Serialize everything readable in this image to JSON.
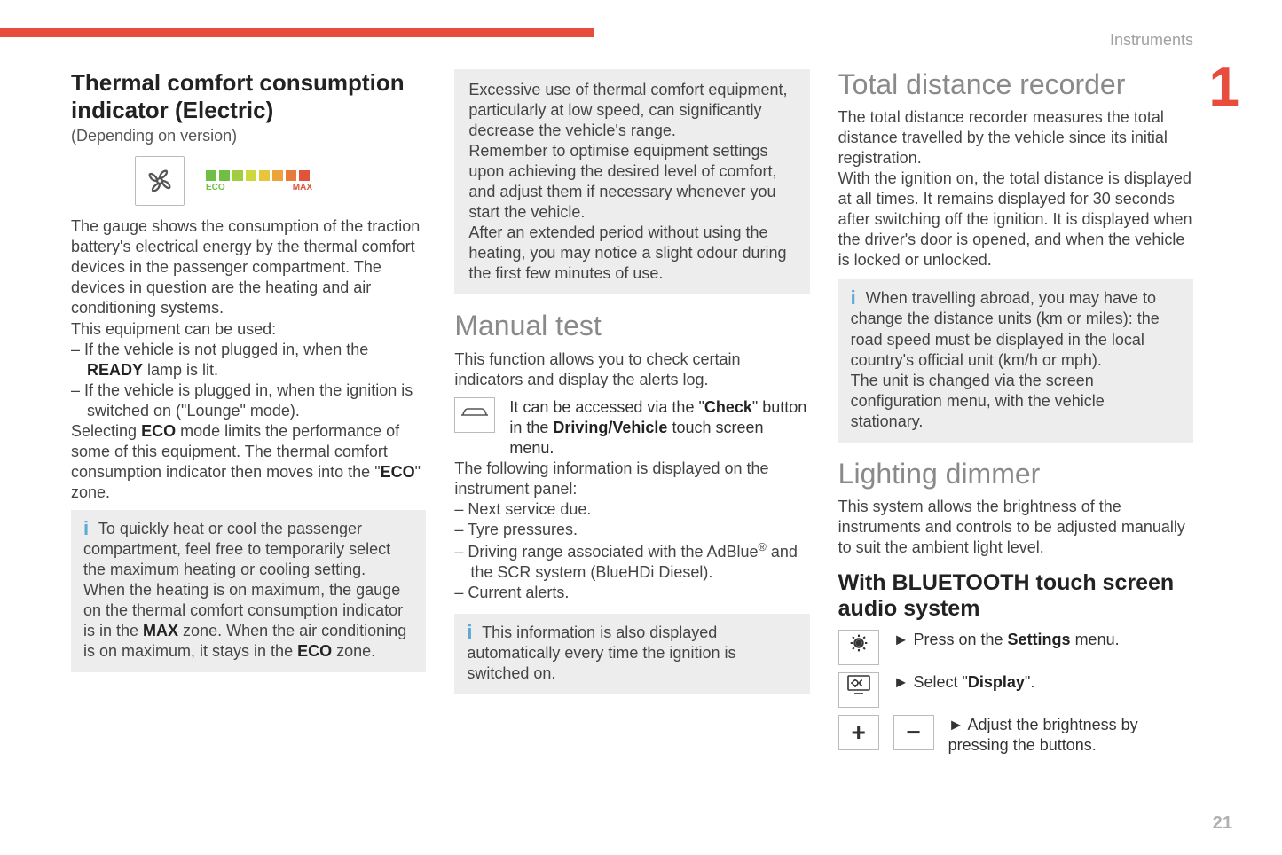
{
  "header": {
    "section": "Instruments",
    "chapter_number": "1",
    "page_number": "21"
  },
  "accent_color": "#e74c3c",
  "col1": {
    "h_title": "Thermal comfort consumption indicator (Electric)",
    "sub": "(Depending on version)",
    "gauge": {
      "colors": [
        "#6fbf44",
        "#6fbf44",
        "#9fcf3f",
        "#cfd83a",
        "#e8c63a",
        "#eda23a",
        "#e87a3a",
        "#e2543a"
      ],
      "eco_label": "ECO",
      "eco_color": "#6fbf44",
      "max_label": "MAX",
      "max_color": "#e2543a"
    },
    "p1": "The gauge shows the consumption of the traction battery's electrical energy by the thermal comfort devices in the passenger compartment. The devices in question are the heating and air conditioning systems.",
    "p2": "This equipment can be used:",
    "li1_a": "If the vehicle is not plugged in, when the ",
    "li1_b": "READY",
    "li1_c": " lamp is lit.",
    "li2": "If the vehicle is plugged in, when the ignition is switched on (\"Lounge\" mode).",
    "p3_a": "Selecting ",
    "p3_b": "ECO",
    "p3_c": " mode limits the performance of some of this equipment. The thermal comfort consumption indicator then moves into the \"",
    "p3_d": "ECO",
    "p3_e": "\" zone.",
    "info1_a": "To quickly heat or cool the passenger compartment, feel free to temporarily select the maximum heating or cooling setting.",
    "info1_b_a": "When the heating is on maximum, the gauge on the thermal comfort consumption indicator is in the ",
    "info1_b_b": "MAX",
    "info1_b_c": " zone. When the air conditioning is on maximum, it stays in the ",
    "info1_b_d": "ECO",
    "info1_b_e": " zone."
  },
  "col2": {
    "note1_a": "Excessive use of thermal comfort equipment, particularly at low speed, can significantly decrease the vehicle's range.",
    "note1_b": "Remember to optimise equipment settings upon achieving the desired level of comfort, and adjust them if necessary whenever you start the vehicle.",
    "note1_c": "After an extended period without using the heating, you may notice a slight odour during the first few minutes of use.",
    "h_manual": "Manual test",
    "m_p1": "This function allows you to check certain indicators and display the alerts log.",
    "m_p2_a": "It can be accessed via the \"",
    "m_p2_b": "Check",
    "m_p2_c": "\" button in the ",
    "m_p2_d": "Driving/Vehicle",
    "m_p2_e": " touch screen menu.",
    "m_p3": "The following information is displayed on the instrument panel:",
    "m_li1": "Next service due.",
    "m_li2": "Tyre pressures.",
    "m_li3_a": "Driving range associated with the AdBlue",
    "m_li3_b": " and the SCR system (BlueHDi Diesel).",
    "m_li4": "Current alerts.",
    "info2": "This information is also displayed automatically every time the ignition is switched on."
  },
  "col3": {
    "h_total": "Total distance recorder",
    "t_p1": "The total distance recorder measures the total distance travelled by the vehicle since its initial registration.",
    "t_p2": "With the ignition on, the total distance is displayed at all times. It remains displayed for 30 seconds after switching off the ignition. It is displayed when the driver's door is opened, and when the vehicle is locked or unlocked.",
    "info3_a": "When travelling abroad, you may have to change the distance units (km or miles): the road speed must be displayed in the local country's official unit (km/h or mph).",
    "info3_b": "The unit is changed via the screen configuration menu, with the vehicle stationary.",
    "h_light": "Lighting dimmer",
    "l_p1": "This system allows the brightness of the instruments and controls to be adjusted manually to suit the ambient light level.",
    "h_bt": "With BLUETOOTH touch screen audio system",
    "bt1_a": "Press on the ",
    "bt1_b": "Settings",
    "bt1_c": " menu.",
    "bt2_a": "Select \"",
    "bt2_b": "Display",
    "bt2_c": "\".",
    "bt3": "Adjust the brightness by pressing the buttons."
  }
}
